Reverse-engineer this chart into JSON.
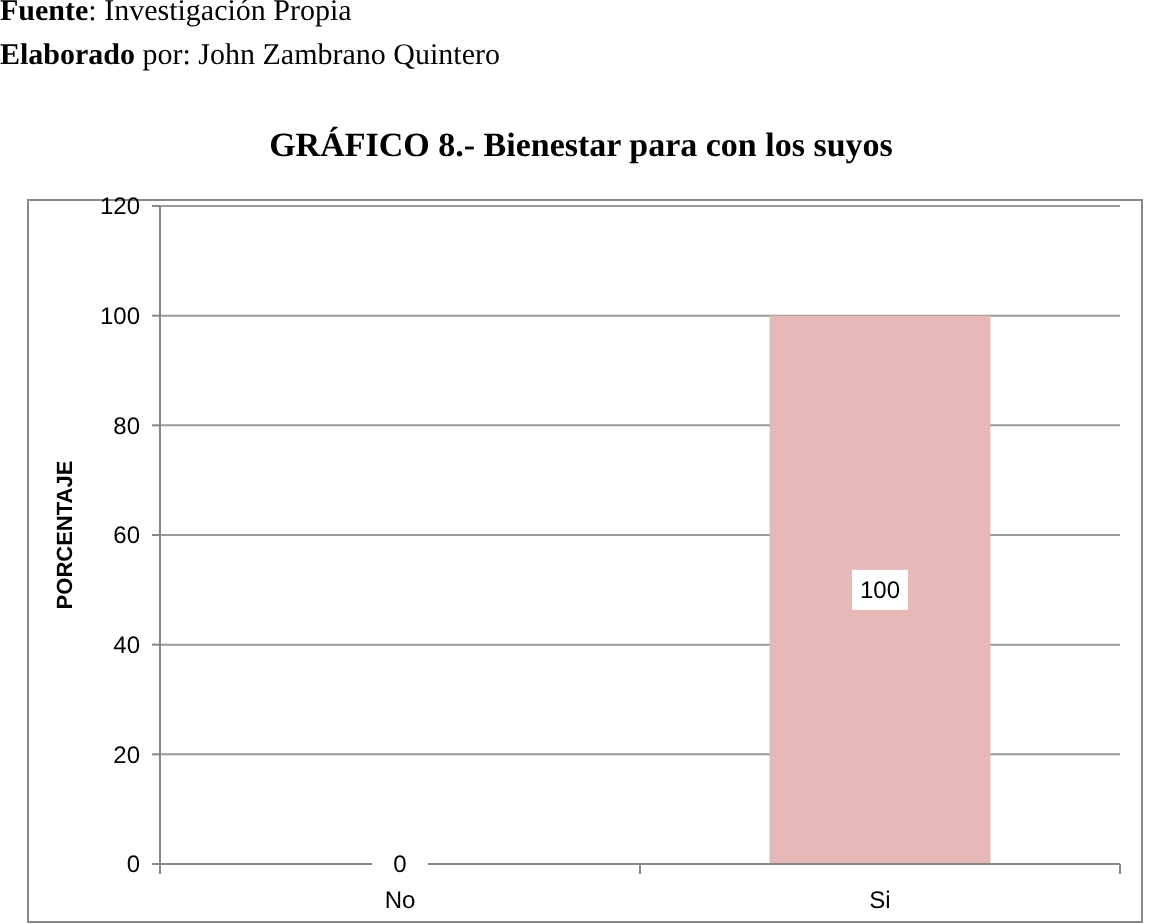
{
  "chart_data": {
    "type": "bar",
    "title": "GRÁFICO 8.- Bienestar para con los suyos",
    "ylabel": "PORCENTAJE",
    "annotations": [
      "Fuente: Investigación  Propia",
      "Elaborado por: John Zambrano Quintero"
    ],
    "categories": [
      "No",
      "Si"
    ],
    "values": [
      0,
      100
    ],
    "color": "#e6b9b8",
    "ylim": [
      0,
      120
    ],
    "yticks": [
      0,
      20,
      40,
      60,
      80,
      100,
      120
    ],
    "grid": "y",
    "data_labels": true
  }
}
